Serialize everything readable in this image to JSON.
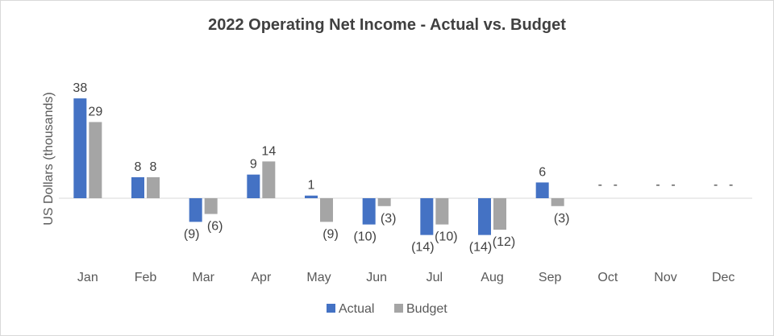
{
  "chart_data": {
    "type": "bar",
    "title": "2022 Operating Net Income - Actual vs. Budget",
    "ylabel": "US Dollars (thousands)",
    "xlabel": "",
    "categories": [
      "Jan",
      "Feb",
      "Mar",
      "Apr",
      "May",
      "Jun",
      "Jul",
      "Aug",
      "Sep",
      "Oct",
      "Nov",
      "Dec"
    ],
    "series": [
      {
        "name": "Actual",
        "color": "#4472c4",
        "values": [
          38,
          8,
          -9,
          9,
          1,
          -10,
          -14,
          -14,
          6,
          0,
          0,
          0
        ],
        "labels": [
          "38",
          "8",
          "(9)",
          "9",
          "1",
          "(10)",
          "(14)",
          "(14)",
          "6",
          "-",
          "-",
          "-"
        ]
      },
      {
        "name": "Budget",
        "color": "#a5a5a5",
        "values": [
          29,
          8,
          -6,
          14,
          -9,
          -3,
          -10,
          -12,
          -3,
          0,
          0,
          0
        ],
        "labels": [
          "29",
          "8",
          "(6)",
          "14",
          "(9)",
          "(3)",
          "(10)",
          "(12)",
          "(3)",
          "-",
          "-",
          "-"
        ]
      }
    ],
    "ylim": [
      -15,
      40
    ],
    "grid": false,
    "legend_position": "bottom",
    "zero_line_color": "#d9d9d9"
  }
}
